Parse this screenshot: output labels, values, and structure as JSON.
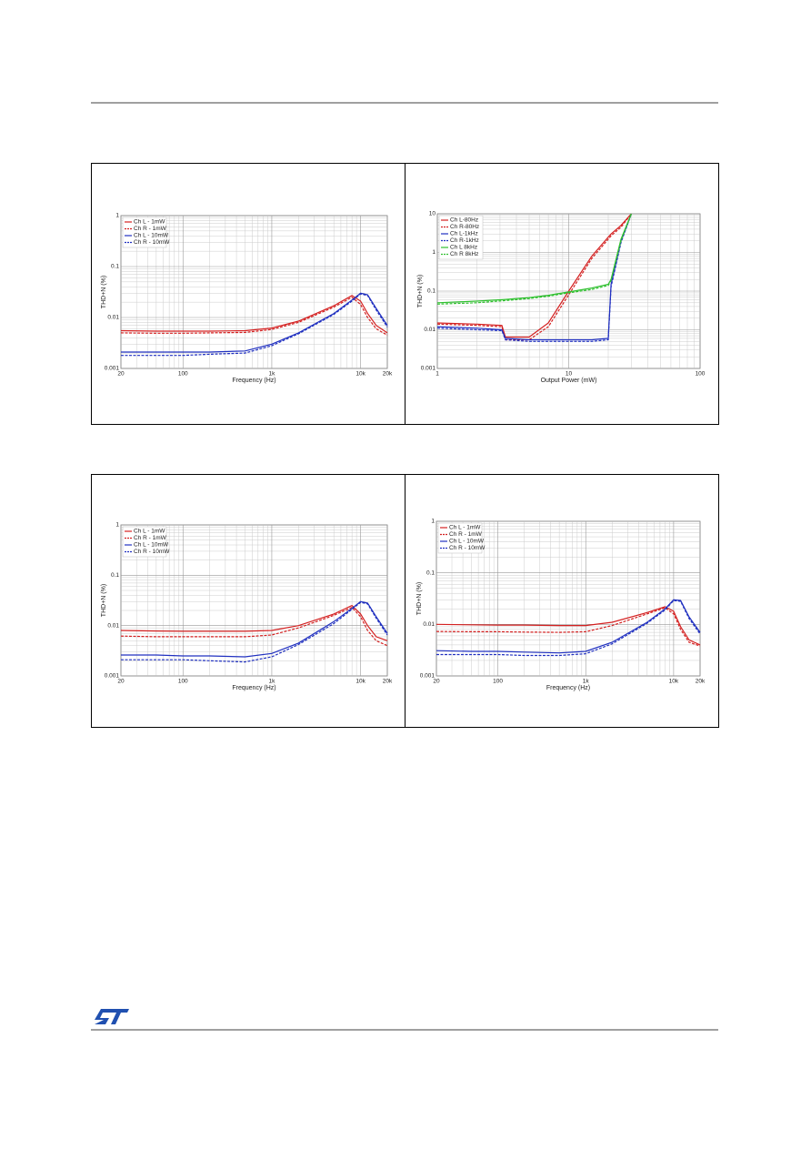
{
  "chart_data": [
    {
      "type": "line",
      "ylabel": "THD+N (%)",
      "xlabel": "Frequency (Hz)",
      "xlog": true,
      "ylog": true,
      "grid": true,
      "legend": "upper left",
      "xlim": [
        20,
        20000
      ],
      "ylim": [
        0.001,
        1
      ],
      "xticks": [
        20,
        100,
        {
          "value": 1000,
          "label": "1k"
        },
        {
          "value": 10000,
          "label": "10k"
        },
        {
          "value": 20000,
          "label": "20k"
        }
      ],
      "yticks": [
        0.001,
        0.01,
        0.1,
        1
      ],
      "x": [
        20,
        50,
        100,
        200,
        500,
        1000,
        2000,
        5000,
        8000,
        10000,
        12000,
        15000,
        20000
      ],
      "series": [
        {
          "name": "Ch L - 1mW",
          "color": "#d42020",
          "style": "solid",
          "values": [
            0.0055,
            0.0054,
            0.0054,
            0.0054,
            0.0055,
            0.0062,
            0.0085,
            0.017,
            0.027,
            0.021,
            0.012,
            0.007,
            0.005
          ]
        },
        {
          "name": "Ch R - 1mW",
          "color": "#d42020",
          "style": "dashed",
          "values": [
            0.005,
            0.0049,
            0.0049,
            0.005,
            0.0051,
            0.0058,
            0.008,
            0.016,
            0.025,
            0.018,
            0.01,
            0.006,
            0.0045
          ]
        },
        {
          "name": "Ch L - 10mW",
          "color": "#2030c0",
          "style": "solid",
          "values": [
            0.0021,
            0.0021,
            0.0021,
            0.0021,
            0.0022,
            0.003,
            0.005,
            0.012,
            0.022,
            0.03,
            0.028,
            0.015,
            0.007
          ]
        },
        {
          "name": "Ch R - 10mW",
          "color": "#2030c0",
          "style": "dashed",
          "values": [
            0.0018,
            0.0018,
            0.0018,
            0.0019,
            0.002,
            0.0028,
            0.0048,
            0.0115,
            0.021,
            0.029,
            0.027,
            0.014,
            0.0065
          ]
        }
      ]
    },
    {
      "type": "line",
      "ylabel": "THD+N (%)",
      "xlabel": "Output Power (mW)",
      "xlog": true,
      "ylog": true,
      "grid": true,
      "legend": "upper left",
      "xlim": [
        1,
        100
      ],
      "ylim": [
        0.001,
        10
      ],
      "xticks": [
        1,
        10,
        100
      ],
      "yticks": [
        0.001,
        0.01,
        0.1,
        1,
        10
      ],
      "x": [
        1,
        2,
        3.1,
        3.3,
        5,
        7,
        10,
        15,
        20,
        21,
        25,
        30
      ],
      "series": [
        {
          "name": "Ch L-80Hz",
          "color": "#d42020",
          "style": "solid",
          "values": [
            0.015,
            0.014,
            0.013,
            0.0065,
            0.0065,
            0.015,
            0.1,
            0.8,
            2.5,
            3,
            5,
            10
          ]
        },
        {
          "name": "Ch R-80Hz",
          "color": "#d42020",
          "style": "dashed",
          "values": [
            0.014,
            0.013,
            0.012,
            0.0055,
            0.0055,
            0.012,
            0.08,
            0.7,
            2.2,
            2.7,
            4.5,
            10
          ]
        },
        {
          "name": "Ch L-1kHz",
          "color": "#2030c0",
          "style": "solid",
          "values": [
            0.012,
            0.011,
            0.01,
            0.006,
            0.0055,
            0.0055,
            0.0055,
            0.0055,
            0.006,
            0.15,
            2,
            10
          ]
        },
        {
          "name": "Ch R-1kHz",
          "color": "#2030c0",
          "style": "dashed",
          "values": [
            0.011,
            0.01,
            0.0095,
            0.0055,
            0.005,
            0.005,
            0.005,
            0.005,
            0.0055,
            0.13,
            1.8,
            10
          ]
        },
        {
          "name": "Ch L 8kHz",
          "color": "#30c030",
          "style": "solid",
          "values": [
            0.05,
            0.055,
            0.06,
            0.061,
            0.068,
            0.078,
            0.095,
            0.12,
            0.15,
            0.2,
            2.2,
            10
          ]
        },
        {
          "name": "Ch R 8kHz",
          "color": "#30c030",
          "style": "dashed",
          "values": [
            0.046,
            0.05,
            0.056,
            0.057,
            0.064,
            0.074,
            0.09,
            0.11,
            0.14,
            0.19,
            2,
            10
          ]
        }
      ]
    },
    {
      "type": "line",
      "ylabel": "THD+N (%)",
      "xlabel": "Frequency (Hz)",
      "xlog": true,
      "ylog": true,
      "grid": true,
      "legend": "upper left",
      "xlim": [
        20,
        20000
      ],
      "ylim": [
        0.001,
        1
      ],
      "xticks": [
        20,
        100,
        {
          "value": 1000,
          "label": "1k"
        },
        {
          "value": 10000,
          "label": "10k"
        },
        {
          "value": 20000,
          "label": "20k"
        }
      ],
      "yticks": [
        0.001,
        0.01,
        0.1,
        1
      ],
      "x": [
        20,
        50,
        100,
        200,
        500,
        1000,
        2000,
        5000,
        8000,
        10000,
        12000,
        15000,
        20000
      ],
      "series": [
        {
          "name": "Ch L - 1mW",
          "color": "#d42020",
          "style": "solid",
          "values": [
            0.008,
            0.0078,
            0.0077,
            0.0077,
            0.0077,
            0.008,
            0.01,
            0.017,
            0.025,
            0.017,
            0.01,
            0.006,
            0.005
          ]
        },
        {
          "name": "Ch R - 1mW",
          "color": "#d42020",
          "style": "dashed",
          "values": [
            0.0062,
            0.006,
            0.006,
            0.006,
            0.006,
            0.0065,
            0.009,
            0.016,
            0.023,
            0.015,
            0.008,
            0.005,
            0.004
          ]
        },
        {
          "name": "Ch L - 10mW",
          "color": "#2030c0",
          "style": "solid",
          "values": [
            0.0026,
            0.0026,
            0.0025,
            0.0025,
            0.0024,
            0.0028,
            0.0045,
            0.012,
            0.022,
            0.03,
            0.028,
            0.015,
            0.007
          ]
        },
        {
          "name": "Ch R - 10mW",
          "color": "#2030c0",
          "style": "dashed",
          "values": [
            0.0021,
            0.0021,
            0.0021,
            0.002,
            0.0019,
            0.0024,
            0.0042,
            0.011,
            0.021,
            0.029,
            0.027,
            0.014,
            0.0065
          ]
        }
      ]
    },
    {
      "type": "line",
      "ylabel": "THD+N (%)",
      "xlabel": "Frequency (Hz)",
      "xlog": true,
      "ylog": true,
      "grid": true,
      "legend": "upper left",
      "xlim": [
        20,
        20000
      ],
      "ylim": [
        0.001,
        1
      ],
      "xticks": [
        20,
        100,
        {
          "value": 1000,
          "label": "1k"
        },
        {
          "value": 10000,
          "label": "10k"
        },
        {
          "value": 20000,
          "label": "20k"
        }
      ],
      "yticks": [
        0.001,
        0.01,
        0.1,
        1
      ],
      "x": [
        20,
        50,
        100,
        200,
        500,
        1000,
        2000,
        5000,
        8000,
        10000,
        12000,
        15000,
        20000
      ],
      "series": [
        {
          "name": "Ch L - 1mW",
          "color": "#d42020",
          "style": "solid",
          "values": [
            0.01,
            0.0098,
            0.0097,
            0.0097,
            0.0095,
            0.0095,
            0.011,
            0.017,
            0.022,
            0.018,
            0.009,
            0.005,
            0.004
          ]
        },
        {
          "name": "Ch R - 1mW",
          "color": "#d42020",
          "style": "dashed",
          "values": [
            0.0073,
            0.0072,
            0.0072,
            0.0071,
            0.007,
            0.0072,
            0.0095,
            0.016,
            0.021,
            0.016,
            0.008,
            0.0045,
            0.0038
          ]
        },
        {
          "name": "Ch L - 10mW",
          "color": "#2030c0",
          "style": "solid",
          "values": [
            0.0031,
            0.003,
            0.003,
            0.0029,
            0.0028,
            0.003,
            0.0045,
            0.011,
            0.02,
            0.03,
            0.029,
            0.014,
            0.007
          ]
        },
        {
          "name": "Ch R - 10mW",
          "color": "#2030c0",
          "style": "dashed",
          "values": [
            0.0026,
            0.0026,
            0.0026,
            0.0025,
            0.0025,
            0.0027,
            0.0042,
            0.0105,
            0.019,
            0.029,
            0.028,
            0.013,
            0.0065
          ]
        }
      ]
    }
  ]
}
